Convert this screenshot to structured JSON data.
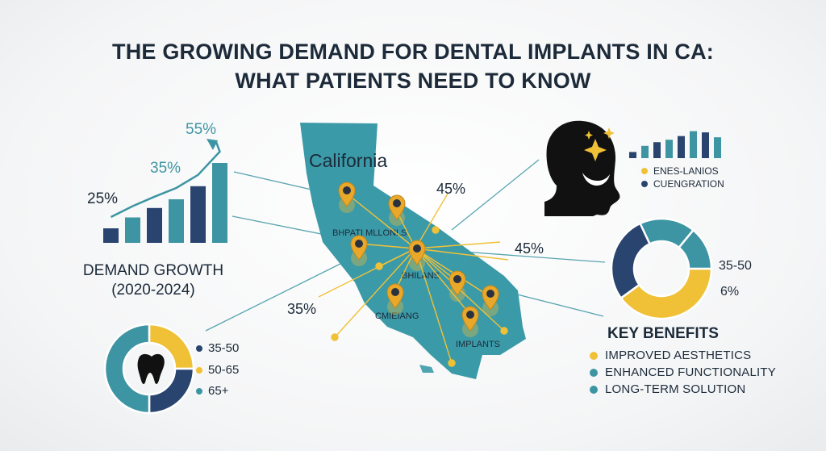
{
  "title": {
    "line1": "THE GROWING DEMAND FOR DENTAL IMPLANTS IN CA:",
    "line2": "WHAT PATIENTS NEED TO KNOW"
  },
  "colors": {
    "navy": "#2a4470",
    "teal": "#3d95a3",
    "gold": "#f0c137",
    "map": "#3b9aa8",
    "text": "#1c2a39"
  },
  "icons": [
    "tooth-icon",
    "face-silhouette-icon",
    "sparkle-icon",
    "map-pin-icon"
  ],
  "growth": {
    "label_line1": "DEMAND GROWTH",
    "label_line2": "(2020-2024)"
  },
  "map": {
    "state_label": "California",
    "region_labels": [
      "BHPATI MLLONLS",
      "BHILANS",
      "CMIEIANG",
      "IMPLANTS"
    ],
    "callouts": [
      "45%",
      "45%",
      "35%"
    ]
  },
  "face_legend": [
    "ENES-LANIOS",
    "CUENGRATION"
  ],
  "right_donut": {
    "labels": [
      "35-50",
      "6%"
    ]
  },
  "age_legend": [
    "35-50",
    "50-65",
    "65+"
  ],
  "benefits": {
    "title": "KEY BENEFITS",
    "items": [
      "IMPROVED AESTHETICS",
      "ENHANCED FUNCTIONALITY",
      "LONG-TERM SOLUTION"
    ]
  },
  "chart_data": [
    {
      "type": "bar",
      "categories": [
        "",
        "",
        "",
        "",
        "",
        ""
      ],
      "series": [
        {
          "values": [
            2,
            3.5,
            4.8,
            6,
            7.8,
            11
          ]
        }
      ],
      "trend_labels": [
        "25%",
        "35%",
        "55%"
      ],
      "ylim": [
        0,
        12
      ],
      "grid": false
    },
    {
      "type": "bar",
      "categories": [
        "",
        "",
        "",
        "",
        "",
        "",
        "",
        ""
      ],
      "series": [
        {
          "values": [
            1,
            2,
            2.6,
            3,
            3.6,
            4.4,
            4.2,
            3.4
          ]
        }
      ],
      "ylim": [
        0,
        5
      ],
      "grid": false
    },
    {
      "type": "pie",
      "categories": [
        "35-50",
        "50-65",
        "65+"
      ],
      "values": [
        25,
        25,
        50
      ],
      "colors": [
        "#f0c137",
        "#2a4470",
        "#3d95a3"
      ]
    },
    {
      "type": "pie",
      "categories": [
        "35-50",
        "6%",
        "",
        ""
      ],
      "values": [
        40,
        28,
        18,
        14
      ],
      "colors": [
        "#f0c137",
        "#2a4470",
        "#3d95a3",
        "#3d95a3"
      ]
    }
  ]
}
